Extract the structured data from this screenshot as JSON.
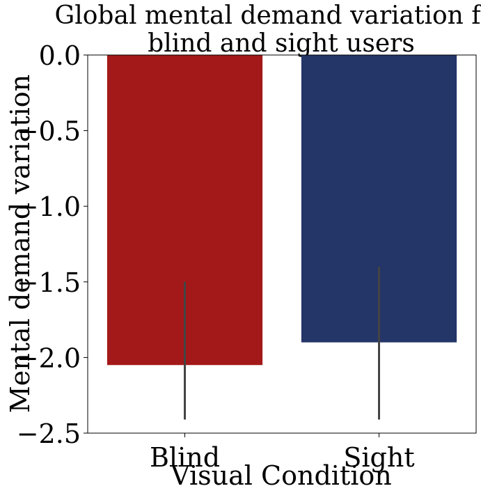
{
  "chart_data": {
    "type": "bar",
    "title_lines": [
      "Global mental demand variation for",
      "blind and sight users"
    ],
    "xlabel": "Visual Condition",
    "ylabel": "Mental demand variation",
    "categories": [
      "Blind",
      "Sight"
    ],
    "values": [
      -2.05,
      -1.9
    ],
    "error_low": [
      -2.41,
      -2.41
    ],
    "error_high": [
      -1.5,
      -1.4
    ],
    "colors": [
      "#a31818",
      "#243568"
    ],
    "error_color": "#444444",
    "ylim": [
      -2.5,
      0.0
    ],
    "yticks": [
      0.0,
      -0.5,
      -1.0,
      -1.5,
      -2.0,
      -2.5
    ],
    "ytick_labels": [
      "0.0",
      "−0.5",
      "−1.0",
      "−1.5",
      "−2.0",
      "−2.5"
    ],
    "grid": false,
    "legend": "none"
  }
}
